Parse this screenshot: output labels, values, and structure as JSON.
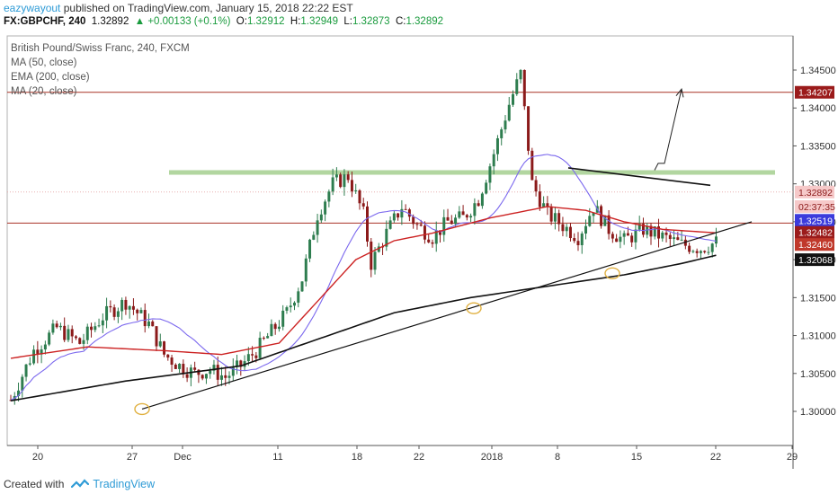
{
  "header": {
    "author": "eazywayout",
    "published_text": "published on TradingView.com, January 15, 2018 22:22 EST",
    "symbol": "FX:GBPCHF, 240",
    "last": "1.32892",
    "change": "▲ +0.00133 (+0.1%)",
    "o_label": "O:",
    "o_value": "1.32912",
    "h_label": "H:",
    "h_value": "1.32949",
    "l_label": "L:",
    "l_value": "1.32873",
    "c_label": "C:",
    "c_value": "1.32892"
  },
  "legend": {
    "title": "British Pound/Swiss Franc, 240, FXCM",
    "items": [
      "MA (50, close)",
      "EMA (200, close)",
      "MA (20, close)"
    ]
  },
  "footer": {
    "created_with": "Created with",
    "brand": "TradingView"
  },
  "colors": {
    "up": "#2e7d4f",
    "down": "#8b1a1a",
    "ma50": "#cc2222",
    "ema200": "#111111",
    "ma20": "#7b68ee",
    "zone": "#a5cf8f",
    "resistance": "#9b1b1b",
    "hline": "#a93226"
  },
  "chart_data": {
    "type": "candlestick",
    "x_tick_labels": [
      "20",
      "27",
      "Dec",
      "11",
      "18",
      "22",
      "2018",
      "8",
      "15",
      "22",
      "29"
    ],
    "y_tick_labels": [
      "1.34500",
      "1.34000",
      "1.33500",
      "1.33000",
      "1.32500",
      "1.32000",
      "1.31500",
      "1.31000",
      "1.30500",
      "1.30000"
    ],
    "ylim": [
      1.2955,
      1.3495
    ],
    "bars": 185,
    "close_path": [
      [
        0,
        1.3015
      ],
      [
        6,
        1.308
      ],
      [
        12,
        1.311
      ],
      [
        18,
        1.309
      ],
      [
        24,
        1.3125
      ],
      [
        30,
        1.3145
      ],
      [
        36,
        1.3115
      ],
      [
        40,
        1.3075
      ],
      [
        44,
        1.306
      ],
      [
        48,
        1.305
      ],
      [
        52,
        1.3055
      ],
      [
        56,
        1.3045
      ],
      [
        60,
        1.306
      ],
      [
        64,
        1.308
      ],
      [
        68,
        1.3105
      ],
      [
        72,
        1.313
      ],
      [
        76,
        1.3175
      ],
      [
        80,
        1.326
      ],
      [
        84,
        1.33
      ],
      [
        88,
        1.331
      ],
      [
        92,
        1.326
      ],
      [
        94,
        1.3195
      ],
      [
        98,
        1.3235
      ],
      [
        102,
        1.327
      ],
      [
        106,
        1.3245
      ],
      [
        110,
        1.323
      ],
      [
        114,
        1.325
      ],
      [
        118,
        1.3255
      ],
      [
        122,
        1.328
      ],
      [
        126,
        1.334
      ],
      [
        130,
        1.3405
      ],
      [
        133,
        1.3445
      ],
      [
        136,
        1.33
      ],
      [
        140,
        1.326
      ],
      [
        144,
        1.3245
      ],
      [
        148,
        1.323
      ],
      [
        152,
        1.327
      ],
      [
        156,
        1.324
      ],
      [
        160,
        1.3225
      ],
      [
        165,
        1.324
      ],
      [
        170,
        1.323
      ],
      [
        175,
        1.322
      ],
      [
        180,
        1.3215
      ],
      [
        185,
        1.3225
      ]
    ],
    "ma50_path": [
      [
        0,
        1.307
      ],
      [
        20,
        1.3085
      ],
      [
        40,
        1.308
      ],
      [
        55,
        1.3075
      ],
      [
        70,
        1.309
      ],
      [
        80,
        1.3145
      ],
      [
        90,
        1.32
      ],
      [
        100,
        1.3225
      ],
      [
        110,
        1.3235
      ],
      [
        125,
        1.3255
      ],
      [
        140,
        1.327
      ],
      [
        150,
        1.3265
      ],
      [
        160,
        1.325
      ],
      [
        170,
        1.324
      ],
      [
        185,
        1.3235
      ]
    ],
    "price_labels": [
      {
        "value": "1.34207",
        "kind": "resistance"
      },
      {
        "value": "1.32892",
        "kind": "last"
      },
      {
        "value": "02:37:35",
        "kind": "timer"
      },
      {
        "value": "1.32519",
        "kind": "ma20"
      },
      {
        "value": "1.32482",
        "kind": "line"
      },
      {
        "value": "1.32460",
        "kind": "ma50"
      },
      {
        "value": "1.32068",
        "kind": "ema200"
      }
    ]
  }
}
